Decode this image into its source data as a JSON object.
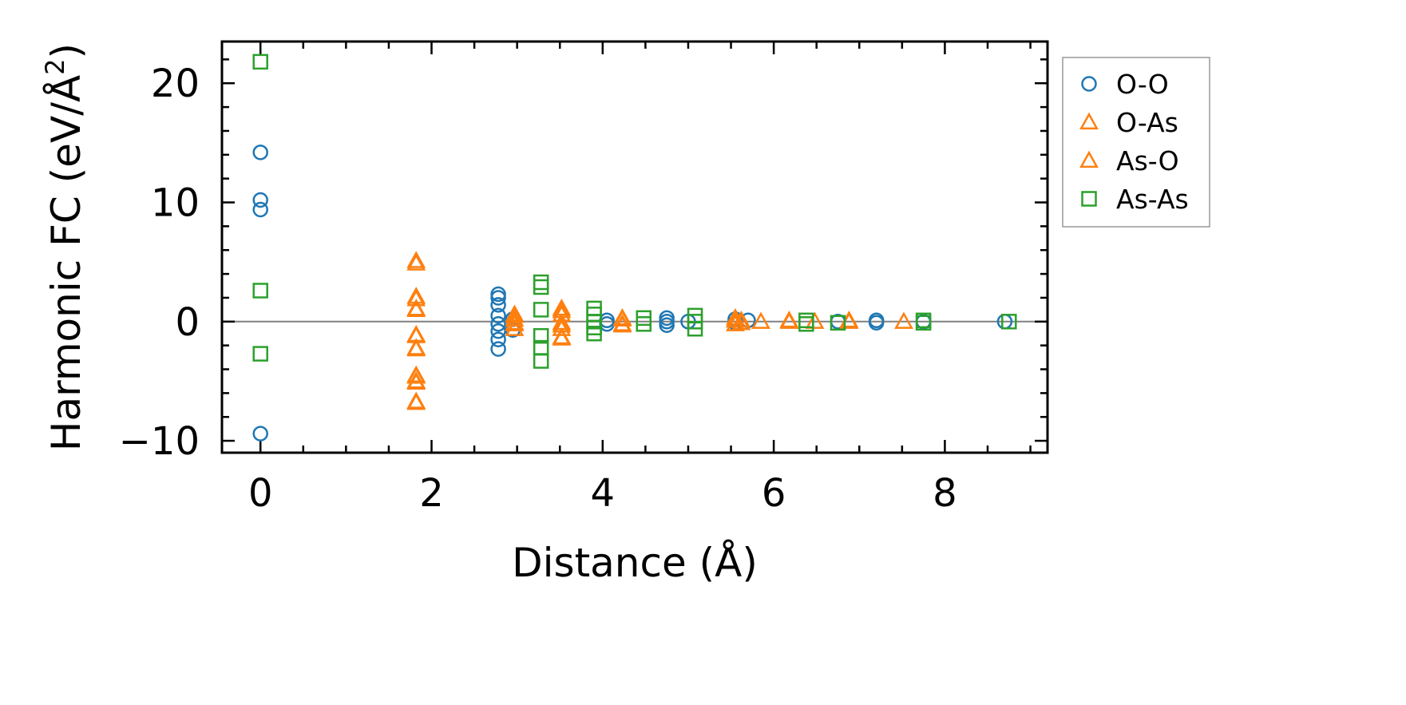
{
  "chart_data": {
    "type": "scatter",
    "xlabel": "Distance (Å)",
    "ylabel_text": "Harmonic FC (eV/Å",
    "ylabel_sup": "2",
    "ylabel_close": ")",
    "xlim": [
      -0.45,
      9.2
    ],
    "ylim": [
      -11,
      23.5
    ],
    "x_ticks": [
      0,
      2,
      4,
      6,
      8
    ],
    "y_ticks": [
      -10,
      0,
      10,
      20
    ],
    "x_tick_labels": [
      "0",
      "2",
      "4",
      "6",
      "8"
    ],
    "y_tick_labels": [
      "−10",
      "0",
      "10",
      "20"
    ],
    "x_minor_step": 0.5,
    "y_minor_step": 2,
    "zero_line": true,
    "grid": false,
    "legend_position": "upper-right-outside",
    "series": [
      {
        "name": "O-O",
        "marker": "circle",
        "color": "#1f77b4",
        "points": [
          [
            0,
            14.2
          ],
          [
            0,
            10.2
          ],
          [
            0,
            9.4
          ],
          [
            0,
            -9.4
          ],
          [
            2.78,
            2.3
          ],
          [
            2.78,
            2.0
          ],
          [
            2.78,
            1.4
          ],
          [
            2.78,
            0.5
          ],
          [
            2.78,
            -0.2
          ],
          [
            2.78,
            -0.8
          ],
          [
            2.78,
            -1.5
          ],
          [
            2.78,
            -2.3
          ],
          [
            2.95,
            -0.7
          ],
          [
            2.95,
            0.2
          ],
          [
            4.05,
            0.1
          ],
          [
            4.05,
            -0.2
          ],
          [
            4.75,
            0.3
          ],
          [
            4.75,
            0.0
          ],
          [
            4.75,
            -0.3
          ],
          [
            5.0,
            0.0
          ],
          [
            5.55,
            0.2
          ],
          [
            5.55,
            -0.1
          ],
          [
            5.7,
            0.1
          ],
          [
            6.75,
            0.0
          ],
          [
            7.2,
            0.1
          ],
          [
            7.2,
            -0.1
          ],
          [
            7.75,
            0.0
          ],
          [
            8.7,
            0.0
          ]
        ]
      },
      {
        "name": "O-As",
        "marker": "triangle",
        "color": "#ff7f0e",
        "points": [
          [
            1.82,
            5.1
          ],
          [
            1.82,
            2.1
          ],
          [
            1.82,
            1.1
          ],
          [
            1.82,
            -1.2
          ],
          [
            1.82,
            -2.3
          ],
          [
            1.82,
            -4.5
          ],
          [
            1.82,
            -5.1
          ],
          [
            1.82,
            -6.8
          ],
          [
            2.97,
            0.6
          ],
          [
            2.97,
            0.2
          ],
          [
            2.97,
            -0.2
          ],
          [
            2.97,
            -0.6
          ],
          [
            3.52,
            1.1
          ],
          [
            3.52,
            0.6
          ],
          [
            3.52,
            -0.1
          ],
          [
            3.52,
            -0.6
          ],
          [
            3.52,
            -1.4
          ],
          [
            4.23,
            0.3
          ],
          [
            4.23,
            -0.2
          ],
          [
            5.55,
            0.3
          ],
          [
            5.55,
            -0.2
          ],
          [
            5.62,
            0.1
          ],
          [
            5.85,
            0.0
          ],
          [
            6.18,
            0.1
          ],
          [
            6.48,
            0.0
          ],
          [
            6.88,
            0.0
          ],
          [
            7.52,
            0.0
          ]
        ]
      },
      {
        "name": "As-O",
        "marker": "triangle",
        "color": "#ff7f0e",
        "points": [
          [
            1.82,
            4.9
          ],
          [
            1.82,
            1.9
          ],
          [
            1.82,
            1.0
          ],
          [
            1.82,
            -1.1
          ],
          [
            1.82,
            -2.2
          ],
          [
            1.82,
            -4.6
          ],
          [
            1.82,
            -5.0
          ],
          [
            1.82,
            -6.7
          ],
          [
            2.97,
            0.5
          ],
          [
            2.97,
            -0.1
          ],
          [
            3.52,
            0.9
          ],
          [
            3.52,
            -0.3
          ],
          [
            3.52,
            -1.3
          ],
          [
            4.23,
            0.2
          ],
          [
            4.23,
            -0.3
          ],
          [
            5.55,
            0.1
          ],
          [
            5.62,
            -0.1
          ],
          [
            6.18,
            0.0
          ],
          [
            6.88,
            0.1
          ]
        ]
      },
      {
        "name": "As-As",
        "marker": "square",
        "color": "#2ca02c",
        "points": [
          [
            0,
            21.8
          ],
          [
            0,
            2.6
          ],
          [
            0,
            -2.7
          ],
          [
            3.28,
            3.3
          ],
          [
            3.28,
            2.9
          ],
          [
            3.28,
            1.0
          ],
          [
            3.28,
            -1.2
          ],
          [
            3.28,
            -2.2
          ],
          [
            3.28,
            -3.3
          ],
          [
            3.9,
            1.1
          ],
          [
            3.9,
            0.6
          ],
          [
            3.9,
            0.0
          ],
          [
            3.9,
            -0.5
          ],
          [
            3.9,
            -1.0
          ],
          [
            4.48,
            0.3
          ],
          [
            4.48,
            -0.2
          ],
          [
            5.08,
            0.5
          ],
          [
            5.08,
            0.0
          ],
          [
            5.08,
            -0.6
          ],
          [
            6.38,
            0.1
          ],
          [
            6.38,
            -0.2
          ],
          [
            6.75,
            -0.1
          ],
          [
            7.75,
            0.1
          ],
          [
            7.75,
            -0.1
          ],
          [
            8.75,
            0.0
          ]
        ]
      }
    ]
  }
}
